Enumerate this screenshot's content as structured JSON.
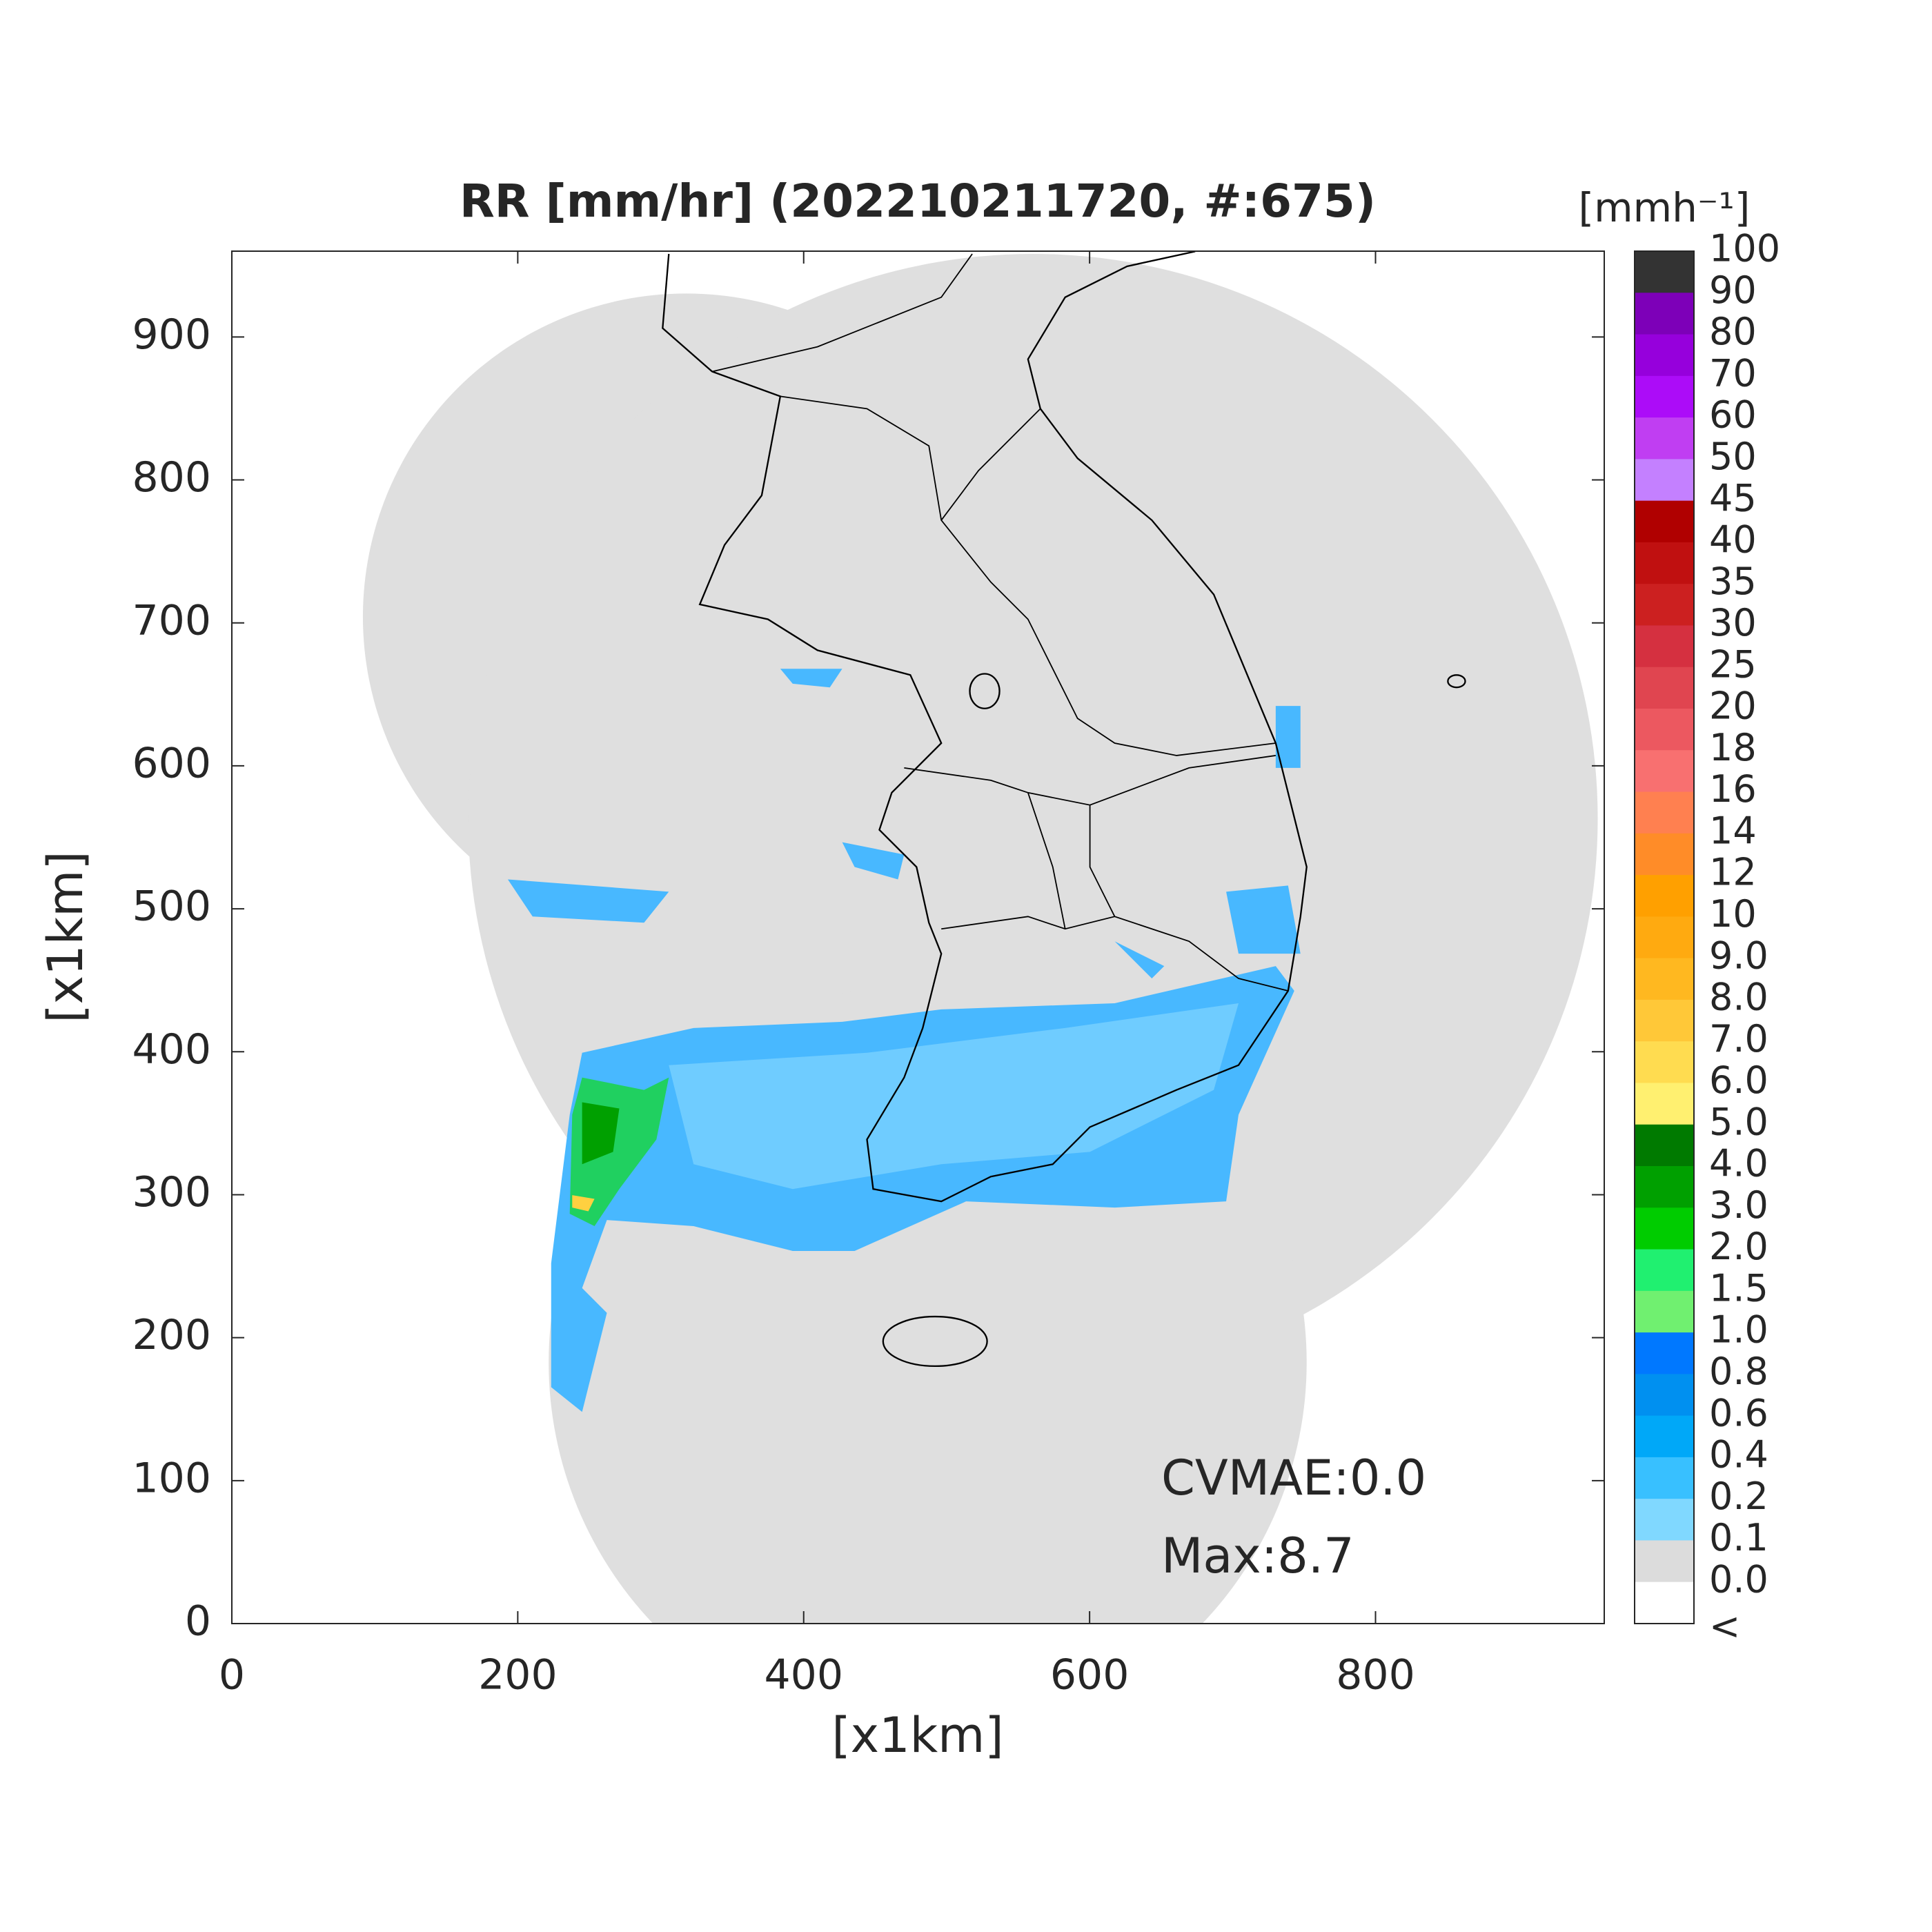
{
  "chart_data": {
    "type": "map",
    "title": "RR [mm/hr] (202210211720, #:675)",
    "xlabel": "[x1km]",
    "ylabel": "[x1km]",
    "xlim": [
      0,
      960
    ],
    "ylim": [
      0,
      960
    ],
    "xticks": [
      0,
      200,
      400,
      600,
      800
    ],
    "yticks": [
      0,
      100,
      200,
      300,
      400,
      500,
      600,
      700,
      800,
      900
    ],
    "annotations": [
      "CVMAE:0.0",
      "Max:8.7"
    ],
    "colorbar": {
      "title": "[mmh⁻¹]",
      "ticks": [
        100,
        90,
        80,
        70,
        60,
        50,
        45,
        40,
        35,
        30,
        25,
        20,
        18,
        16,
        14,
        12,
        10,
        {
          "value": 9,
          "label": "9.0"
        },
        {
          "value": 8,
          "label": "8.0"
        },
        {
          "value": 7,
          "label": "7.0"
        },
        {
          "value": 6,
          "label": "6.0"
        },
        {
          "value": 5,
          "label": "5.0"
        },
        {
          "value": 4,
          "label": "4.0"
        },
        {
          "value": 3,
          "label": "3.0"
        },
        {
          "value": 2,
          "label": "2.0"
        },
        1.5,
        {
          "value": 1,
          "label": "1.0"
        },
        0.8,
        0.6,
        0.4,
        0.2,
        0.1,
        {
          "value": 0,
          "label": "0.0"
        }
      ],
      "colors": [
        "#333333",
        "#7d00b8",
        "#9600dc",
        "#ac0cf8",
        "#c03ef2",
        "#c480ff",
        "#b00000",
        "#c01010",
        "#cc2020",
        "#d53040",
        "#e04550",
        "#ec5860",
        "#f87070",
        "#ff8050",
        "#ff8c28",
        "#ffa000",
        "#ffaa10",
        "#ffb820",
        "#ffc838",
        "#ffdc50",
        "#fff070",
        "#007a00",
        "#00a000",
        "#00cc00",
        "#20f070",
        "#70f070",
        "#0078ff",
        "#0090f0",
        "#00a8f8",
        "#38c0ff",
        "#80d8ff",
        "#dcdcdc",
        "#ffffff"
      ],
      "below_label": "<"
    }
  }
}
